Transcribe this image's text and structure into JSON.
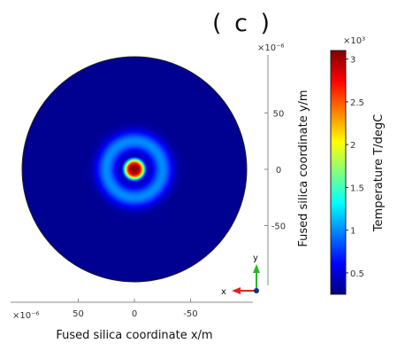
{
  "panel_label": "( c )",
  "chart_data": {
    "type": "heatmap",
    "title": "",
    "xlabel": "Fused silica coordinate x/m",
    "ylabel": "Fused silica coordinate y/m",
    "x_exponent_label": "×10⁻⁶",
    "y_exponent_label": "×10⁻⁶",
    "x_ticks": [
      50,
      0,
      -50
    ],
    "x_tick_labels": [
      "50",
      "0",
      "-50"
    ],
    "y_ticks": [
      50,
      0,
      -50
    ],
    "y_tick_labels": [
      "50",
      "0",
      "-50"
    ],
    "xlim": [
      100,
      -100
    ],
    "ylim": [
      -100,
      100
    ],
    "domain": {
      "shape": "disk",
      "radius": 100,
      "units": "×10⁻⁶ m"
    },
    "field": {
      "quantity": "Temperature",
      "hot_spot_center": [
        0,
        0
      ],
      "hot_spot_radius": 9,
      "peak_value": 3050,
      "ring_center_radius": 25,
      "ring_width": 9,
      "ring_value": 1000,
      "background_value": 300
    },
    "colorbar": {
      "label": "Temperature T/degC",
      "exponent_label": "×10³",
      "min": 0.25,
      "max": 3.1,
      "ticks": [
        0.5,
        1,
        1.5,
        2,
        2.5,
        3
      ],
      "tick_labels": [
        "0.5",
        "1",
        "1.5",
        "2",
        "2.5",
        "3"
      ],
      "colormap": [
        "#00007f",
        "#0000ff",
        "#007fff",
        "#00ffff",
        "#7fff7f",
        "#ffff00",
        "#ff7f00",
        "#ff0000",
        "#7f0000"
      ]
    },
    "axis_triad": {
      "x_label": "x",
      "y_label": "y",
      "x_color": "#e32222",
      "y_color": "#22bb22",
      "origin_color": "#1a2a8c"
    }
  }
}
